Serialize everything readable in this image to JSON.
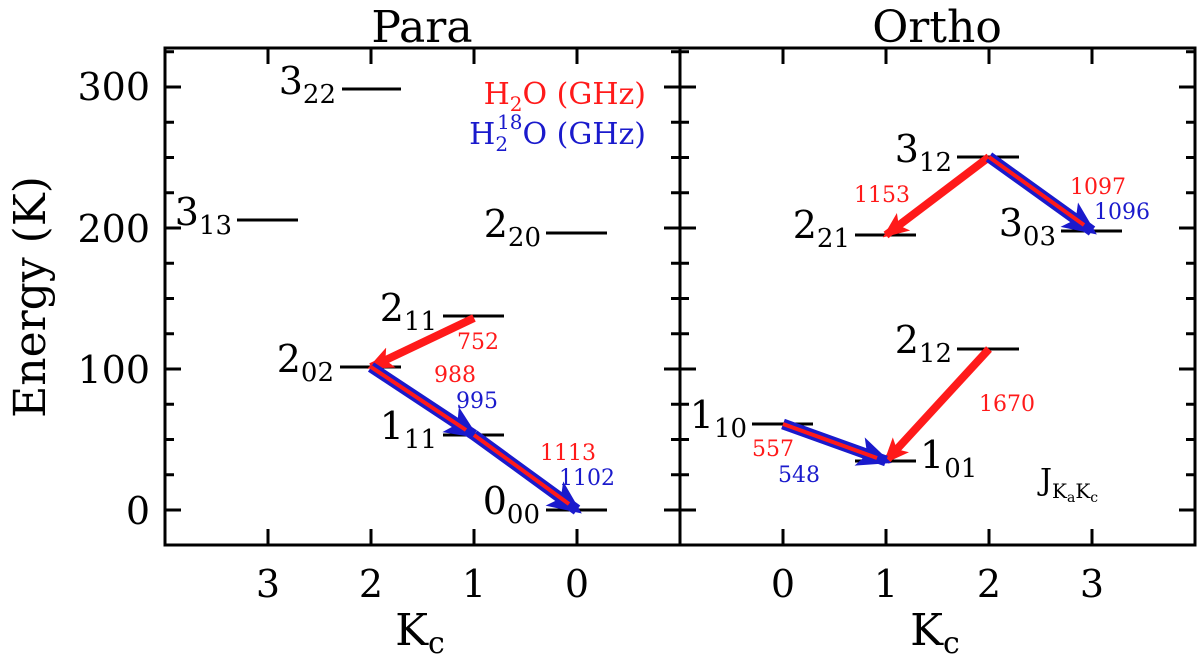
{
  "y_axis": {
    "label": "Energy (K)",
    "ticks": [
      "0",
      "100",
      "200",
      "300"
    ]
  },
  "legend": {
    "line1_prefix": "H",
    "line1_sub": "2",
    "line1_suffix": "O (GHz)",
    "line2_prefix": "H",
    "line2_sub": "2",
    "line2_sup": "18",
    "line2_suffix": "O (GHz)",
    "color_h2o": "#ff1a1a",
    "color_h218o": "#1a1acc"
  },
  "note": {
    "main": "J",
    "sub1": "K",
    "subsub1": "a",
    "sub2": "K",
    "subsub2": "c"
  },
  "panels": [
    {
      "title": "Para",
      "xlabel_main": "K",
      "xlabel_sub": "c",
      "x_ticks": [
        "3",
        "2",
        "1",
        "0"
      ],
      "levels": [
        {
          "main": "3",
          "sub": "22",
          "kc": 2,
          "energy": 297
        },
        {
          "main": "3",
          "sub": "13",
          "kc": 3,
          "energy": 205
        },
        {
          "main": "2",
          "sub": "20",
          "kc": 0,
          "energy": 196
        },
        {
          "main": "2",
          "sub": "11",
          "kc": 1,
          "energy": 137
        },
        {
          "main": "2",
          "sub": "02",
          "kc": 2,
          "energy": 101
        },
        {
          "main": "1",
          "sub": "11",
          "kc": 1,
          "energy": 53
        },
        {
          "main": "0",
          "sub": "00",
          "kc": 0,
          "energy": 0
        }
      ],
      "transitions": [
        {
          "from": "2_11",
          "to": "2_02",
          "h2o": "752",
          "h218o": ""
        },
        {
          "from": "2_02",
          "to": "1_11",
          "h2o": "988",
          "h218o": "995"
        },
        {
          "from": "1_11",
          "to": "0_00",
          "h2o": "1113",
          "h218o": "1102"
        }
      ]
    },
    {
      "title": "Ortho",
      "xlabel_main": "K",
      "xlabel_sub": "c",
      "x_ticks": [
        "0",
        "1",
        "2",
        "3"
      ],
      "levels": [
        {
          "main": "3",
          "sub": "12",
          "kc": 2,
          "energy": 249
        },
        {
          "main": "2",
          "sub": "21",
          "kc": 1,
          "energy": 194
        },
        {
          "main": "3",
          "sub": "03",
          "kc": 3,
          "energy": 197
        },
        {
          "main": "2",
          "sub": "12",
          "kc": 2,
          "energy": 115
        },
        {
          "main": "1",
          "sub": "10",
          "kc": 0,
          "energy": 61
        },
        {
          "main": "1",
          "sub": "01",
          "kc": 1,
          "energy": 35
        }
      ],
      "transitions": [
        {
          "from": "3_12",
          "to": "2_21",
          "h2o": "1153",
          "h218o": ""
        },
        {
          "from": "3_12",
          "to": "3_03",
          "h2o": "1097",
          "h218o": "1096"
        },
        {
          "from": "2_12",
          "to": "1_01",
          "h2o": "1670",
          "h218o": ""
        },
        {
          "from": "1_10",
          "to": "1_01",
          "h2o": "557",
          "h218o": "548"
        }
      ]
    }
  ]
}
